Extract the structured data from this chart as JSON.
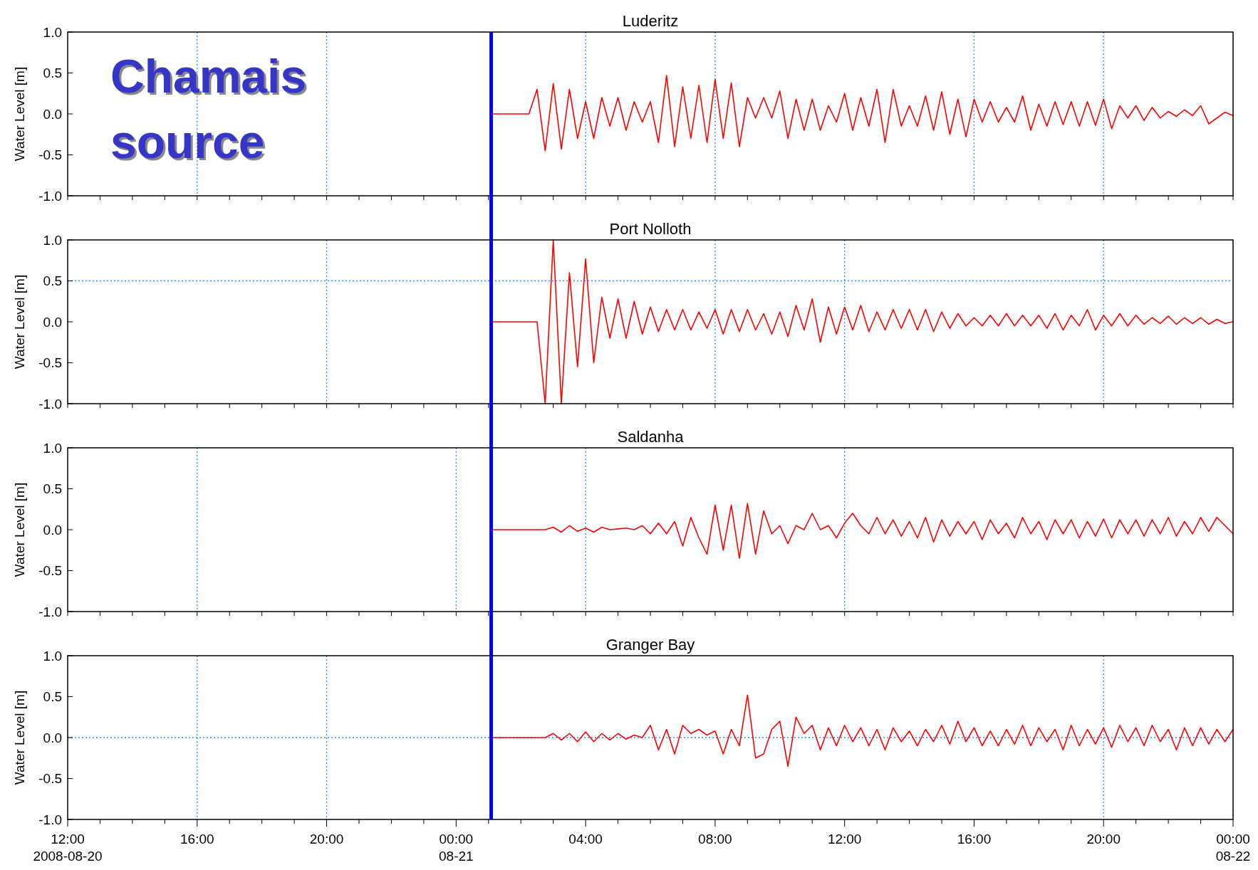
{
  "chart_data": [
    {
      "type": "line",
      "title": "Luderitz",
      "ylabel": "Water Level [m]",
      "xlim": [
        "2008-08-20T12:00",
        "2008-08-22T00:00"
      ],
      "ylim": [
        -1,
        1
      ],
      "yticks": [
        {
          "value": -1,
          "label": "-1.0"
        },
        {
          "value": -0.5,
          "label": "-0.5"
        },
        {
          "value": 0,
          "label": "0.0"
        },
        {
          "value": 0.5,
          "label": "0.5"
        },
        {
          "value": 1,
          "label": "1.0"
        }
      ],
      "xticks": [
        {
          "value": "2008-08-20T12:00",
          "label": null
        },
        {
          "value": "2008-08-20T13:00",
          "label": null
        },
        {
          "value": "2008-08-20T14:00",
          "label": null
        },
        {
          "value": "2008-08-20T15:00",
          "label": null
        },
        {
          "value": "2008-08-20T16:00",
          "label": null
        },
        {
          "value": "2008-08-20T17:00",
          "label": null
        },
        {
          "value": "2008-08-20T18:00",
          "label": null
        },
        {
          "value": "2008-08-20T19:00",
          "label": null
        },
        {
          "value": "2008-08-20T20:00",
          "label": null
        },
        {
          "value": "2008-08-20T21:00",
          "label": null
        },
        {
          "value": "2008-08-20T22:00",
          "label": null
        },
        {
          "value": "2008-08-20T23:00",
          "label": null
        },
        {
          "value": "2008-08-21T00:00",
          "label": null
        },
        {
          "value": "2008-08-21T01:00",
          "label": null
        },
        {
          "value": "2008-08-21T02:00",
          "label": null
        },
        {
          "value": "2008-08-21T03:00",
          "label": null
        },
        {
          "value": "2008-08-21T04:00",
          "label": null
        },
        {
          "value": "2008-08-21T05:00",
          "label": null
        },
        {
          "value": "2008-08-21T06:00",
          "label": null
        },
        {
          "value": "2008-08-21T07:00",
          "label": null
        },
        {
          "value": "2008-08-21T08:00",
          "label": null
        },
        {
          "value": "2008-08-21T09:00",
          "label": null
        },
        {
          "value": "2008-08-21T10:00",
          "label": null
        },
        {
          "value": "2008-08-21T11:00",
          "label": null
        },
        {
          "value": "2008-08-21T12:00",
          "label": null
        },
        {
          "value": "2008-08-21T13:00",
          "label": null
        },
        {
          "value": "2008-08-21T14:00",
          "label": null
        },
        {
          "value": "2008-08-21T15:00",
          "label": null
        },
        {
          "value": "2008-08-21T16:00",
          "label": null
        },
        {
          "value": "2008-08-21T17:00",
          "label": null
        },
        {
          "value": "2008-08-21T18:00",
          "label": null
        },
        {
          "value": "2008-08-21T19:00",
          "label": null
        },
        {
          "value": "2008-08-21T20:00",
          "label": null
        },
        {
          "value": "2008-08-21T21:00",
          "label": null
        },
        {
          "value": "2008-08-21T22:00",
          "label": null
        },
        {
          "value": "2008-08-21T23:00",
          "label": null
        },
        {
          "value": "2008-08-22T00:00",
          "label": null
        }
      ],
      "tick_labels": "y",
      "annotations": [
        "Chamais source"
      ],
      "ref_lines": [
        {
          "axis": "x",
          "value": "2008-08-21T01:05",
          "color": "#0000ff",
          "line_style": "solid"
        },
        {
          "axis": "x",
          "value": "2008-08-20T16:00",
          "color": "#1e90ff",
          "line_style": "dotted"
        },
        {
          "axis": "x",
          "value": "2008-08-20T20:00",
          "color": "#1e90ff",
          "line_style": "dotted"
        },
        {
          "axis": "x",
          "value": "2008-08-21T04:00",
          "color": "#1e90ff",
          "line_style": "dotted"
        },
        {
          "axis": "x",
          "value": "2008-08-21T08:00",
          "color": "#1e90ff",
          "line_style": "dotted"
        },
        {
          "axis": "x",
          "value": "2008-08-21T16:00",
          "color": "#1e90ff",
          "line_style": "dotted"
        },
        {
          "axis": "x",
          "value": "2008-08-21T20:00",
          "color": "#1e90ff",
          "line_style": "dotted"
        }
      ],
      "x": [
        "2008-08-21T01:05",
        "2008-08-21T02:15",
        "2008-08-21T02:30",
        "2008-08-21T02:45",
        "2008-08-21T03:00",
        "2008-08-21T03:15",
        "2008-08-21T03:30",
        "2008-08-21T03:45",
        "2008-08-21T04:00",
        "2008-08-21T04:15",
        "2008-08-21T04:30",
        "2008-08-21T04:45",
        "2008-08-21T05:00",
        "2008-08-21T05:15",
        "2008-08-21T05:30",
        "2008-08-21T05:45",
        "2008-08-21T06:00",
        "2008-08-21T06:15",
        "2008-08-21T06:30",
        "2008-08-21T06:45",
        "2008-08-21T07:00",
        "2008-08-21T07:15",
        "2008-08-21T07:30",
        "2008-08-21T07:45",
        "2008-08-21T08:00",
        "2008-08-21T08:15",
        "2008-08-21T08:30",
        "2008-08-21T08:45",
        "2008-08-21T09:00",
        "2008-08-21T09:15",
        "2008-08-21T09:30",
        "2008-08-21T09:45",
        "2008-08-21T10:00",
        "2008-08-21T10:15",
        "2008-08-21T10:30",
        "2008-08-21T10:45",
        "2008-08-21T11:00",
        "2008-08-21T11:15",
        "2008-08-21T11:30",
        "2008-08-21T11:45",
        "2008-08-21T12:00",
        "2008-08-21T12:15",
        "2008-08-21T12:30",
        "2008-08-21T12:45",
        "2008-08-21T13:00",
        "2008-08-21T13:15",
        "2008-08-21T13:30",
        "2008-08-21T13:45",
        "2008-08-21T14:00",
        "2008-08-21T14:15",
        "2008-08-21T14:30",
        "2008-08-21T14:45",
        "2008-08-21T15:00",
        "2008-08-21T15:15",
        "2008-08-21T15:30",
        "2008-08-21T15:45",
        "2008-08-21T16:00",
        "2008-08-21T16:15",
        "2008-08-21T16:30",
        "2008-08-21T16:45",
        "2008-08-21T17:00",
        "2008-08-21T17:15",
        "2008-08-21T17:30",
        "2008-08-21T17:45",
        "2008-08-21T18:00",
        "2008-08-21T18:15",
        "2008-08-21T18:30",
        "2008-08-21T18:45",
        "2008-08-21T19:00",
        "2008-08-21T19:15",
        "2008-08-21T19:30",
        "2008-08-21T19:45",
        "2008-08-21T20:00",
        "2008-08-21T20:15",
        "2008-08-21T20:30",
        "2008-08-21T20:45",
        "2008-08-21T21:00",
        "2008-08-21T21:15",
        "2008-08-21T21:30",
        "2008-08-21T21:45",
        "2008-08-21T22:00",
        "2008-08-21T22:15",
        "2008-08-21T22:30",
        "2008-08-21T22:45",
        "2008-08-21T23:00",
        "2008-08-21T23:15",
        "2008-08-21T23:30",
        "2008-08-21T23:45",
        "2008-08-22T00:00"
      ],
      "series": [
        {
          "color": "#ff0000",
          "values": [
            0,
            0,
            0.3,
            -0.45,
            0.37,
            -0.43,
            0.3,
            -0.3,
            0.15,
            -0.3,
            0.2,
            -0.15,
            0.2,
            -0.2,
            0.15,
            -0.1,
            0.15,
            -0.35,
            0.47,
            -0.4,
            0.33,
            -0.3,
            0.35,
            -0.35,
            0.42,
            -0.3,
            0.38,
            -0.4,
            0.2,
            -0.05,
            0.2,
            -0.05,
            0.28,
            -0.3,
            0.18,
            -0.2,
            0.18,
            -0.2,
            0.1,
            -0.1,
            0.25,
            -0.2,
            0.2,
            -0.15,
            0.3,
            -0.35,
            0.3,
            -0.15,
            0.1,
            -0.15,
            0.22,
            -0.2,
            0.27,
            -0.25,
            0.18,
            -0.28,
            0.18,
            -0.1,
            0.15,
            -0.1,
            0.08,
            -0.1,
            0.22,
            -0.2,
            0.12,
            -0.15,
            0.15,
            -0.13,
            0.15,
            -0.15,
            0.15,
            -0.14,
            0.18,
            -0.18,
            0.1,
            -0.05,
            0.1,
            -0.08,
            0.08,
            -0.05,
            0.03,
            -0.03,
            0.05,
            -0.02,
            0.1,
            -0.12,
            -0.05,
            0.02,
            -0.02
          ]
        }
      ]
    },
    {
      "type": "line",
      "title": "Port Nolloth",
      "ylabel": "Water Level [m]",
      "xlim": [
        "2008-08-20T12:00",
        "2008-08-22T00:00"
      ],
      "ylim": [
        -1,
        1
      ],
      "yticks": [
        {
          "value": -1,
          "label": "-1.0"
        },
        {
          "value": -0.5,
          "label": "-0.5"
        },
        {
          "value": 0,
          "label": "0.0"
        },
        {
          "value": 0.5,
          "label": "0.5"
        },
        {
          "value": 1,
          "label": "1.0"
        }
      ],
      "xticks": [
        {
          "value": "2008-08-20T12:00",
          "label": null
        },
        {
          "value": "2008-08-20T13:00",
          "label": null
        },
        {
          "value": "2008-08-20T14:00",
          "label": null
        },
        {
          "value": "2008-08-20T15:00",
          "label": null
        },
        {
          "value": "2008-08-20T16:00",
          "label": null
        },
        {
          "value": "2008-08-20T17:00",
          "label": null
        },
        {
          "value": "2008-08-20T18:00",
          "label": null
        },
        {
          "value": "2008-08-20T19:00",
          "label": null
        },
        {
          "value": "2008-08-20T20:00",
          "label": null
        },
        {
          "value": "2008-08-20T21:00",
          "label": null
        },
        {
          "value": "2008-08-20T22:00",
          "label": null
        },
        {
          "value": "2008-08-20T23:00",
          "label": null
        },
        {
          "value": "2008-08-21T00:00",
          "label": null
        },
        {
          "value": "2008-08-21T01:00",
          "label": null
        },
        {
          "value": "2008-08-21T02:00",
          "label": null
        },
        {
          "value": "2008-08-21T03:00",
          "label": null
        },
        {
          "value": "2008-08-21T04:00",
          "label": null
        },
        {
          "value": "2008-08-21T05:00",
          "label": null
        },
        {
          "value": "2008-08-21T06:00",
          "label": null
        },
        {
          "value": "2008-08-21T07:00",
          "label": null
        },
        {
          "value": "2008-08-21T08:00",
          "label": null
        },
        {
          "value": "2008-08-21T09:00",
          "label": null
        },
        {
          "value": "2008-08-21T10:00",
          "label": null
        },
        {
          "value": "2008-08-21T11:00",
          "label": null
        },
        {
          "value": "2008-08-21T12:00",
          "label": null
        },
        {
          "value": "2008-08-21T13:00",
          "label": null
        },
        {
          "value": "2008-08-21T14:00",
          "label": null
        },
        {
          "value": "2008-08-21T15:00",
          "label": null
        },
        {
          "value": "2008-08-21T16:00",
          "label": null
        },
        {
          "value": "2008-08-21T17:00",
          "label": null
        },
        {
          "value": "2008-08-21T18:00",
          "label": null
        },
        {
          "value": "2008-08-21T19:00",
          "label": null
        },
        {
          "value": "2008-08-21T20:00",
          "label": null
        },
        {
          "value": "2008-08-21T21:00",
          "label": null
        },
        {
          "value": "2008-08-21T22:00",
          "label": null
        },
        {
          "value": "2008-08-21T23:00",
          "label": null
        },
        {
          "value": "2008-08-22T00:00",
          "label": null
        }
      ],
      "tick_labels": "y",
      "ref_lines": [
        {
          "axis": "x",
          "value": "2008-08-21T01:05",
          "color": "#0000ff",
          "line_style": "solid"
        },
        {
          "axis": "x",
          "value": "2008-08-20T20:00",
          "color": "#1e90ff",
          "line_style": "dotted"
        },
        {
          "axis": "x",
          "value": "2008-08-21T08:00",
          "color": "#1e90ff",
          "line_style": "dotted"
        },
        {
          "axis": "x",
          "value": "2008-08-21T12:00",
          "color": "#1e90ff",
          "line_style": "dotted"
        },
        {
          "axis": "x",
          "value": "2008-08-21T20:00",
          "color": "#1e90ff",
          "line_style": "dotted"
        },
        {
          "axis": "y",
          "value": 0.5,
          "color": "#1e90ff",
          "line_style": "dotted"
        }
      ],
      "x": [
        "2008-08-21T01:05",
        "2008-08-21T02:15",
        "2008-08-21T02:30",
        "2008-08-21T02:45",
        "2008-08-21T03:00",
        "2008-08-21T03:15",
        "2008-08-21T03:30",
        "2008-08-21T03:45",
        "2008-08-21T04:00",
        "2008-08-21T04:15",
        "2008-08-21T04:30",
        "2008-08-21T04:45",
        "2008-08-21T05:00",
        "2008-08-21T05:15",
        "2008-08-21T05:30",
        "2008-08-21T05:45",
        "2008-08-21T06:00",
        "2008-08-21T06:15",
        "2008-08-21T06:30",
        "2008-08-21T06:45",
        "2008-08-21T07:00",
        "2008-08-21T07:15",
        "2008-08-21T07:30",
        "2008-08-21T07:45",
        "2008-08-21T08:00",
        "2008-08-21T08:15",
        "2008-08-21T08:30",
        "2008-08-21T08:45",
        "2008-08-21T09:00",
        "2008-08-21T09:15",
        "2008-08-21T09:30",
        "2008-08-21T09:45",
        "2008-08-21T10:00",
        "2008-08-21T10:15",
        "2008-08-21T10:30",
        "2008-08-21T10:45",
        "2008-08-21T11:00",
        "2008-08-21T11:15",
        "2008-08-21T11:30",
        "2008-08-21T11:45",
        "2008-08-21T12:00",
        "2008-08-21T12:15",
        "2008-08-21T12:30",
        "2008-08-21T12:45",
        "2008-08-21T13:00",
        "2008-08-21T13:15",
        "2008-08-21T13:30",
        "2008-08-21T13:45",
        "2008-08-21T14:00",
        "2008-08-21T14:15",
        "2008-08-21T14:30",
        "2008-08-21T14:45",
        "2008-08-21T15:00",
        "2008-08-21T15:15",
        "2008-08-21T15:30",
        "2008-08-21T15:45",
        "2008-08-21T16:00",
        "2008-08-21T16:15",
        "2008-08-21T16:30",
        "2008-08-21T16:45",
        "2008-08-21T17:00",
        "2008-08-21T17:15",
        "2008-08-21T17:30",
        "2008-08-21T17:45",
        "2008-08-21T18:00",
        "2008-08-21T18:15",
        "2008-08-21T18:30",
        "2008-08-21T18:45",
        "2008-08-21T19:00",
        "2008-08-21T19:15",
        "2008-08-21T19:30",
        "2008-08-21T19:45",
        "2008-08-21T20:00",
        "2008-08-21T20:15",
        "2008-08-21T20:30",
        "2008-08-21T20:45",
        "2008-08-21T21:00",
        "2008-08-21T21:15",
        "2008-08-21T21:30",
        "2008-08-21T21:45",
        "2008-08-21T22:00",
        "2008-08-21T22:15",
        "2008-08-21T22:30",
        "2008-08-21T22:45",
        "2008-08-21T23:00",
        "2008-08-21T23:15",
        "2008-08-21T23:30",
        "2008-08-21T23:45",
        "2008-08-22T00:00"
      ],
      "series": [
        {
          "color": "#ff0000",
          "values": [
            0,
            0,
            0,
            -1,
            1,
            -1,
            0.6,
            -0.55,
            0.77,
            -0.5,
            0.3,
            -0.2,
            0.28,
            -0.2,
            0.25,
            -0.15,
            0.18,
            -0.12,
            0.15,
            -0.1,
            0.15,
            -0.1,
            0.12,
            -0.08,
            0.15,
            -0.15,
            0.15,
            -0.12,
            0.15,
            -0.1,
            0.1,
            -0.15,
            0.12,
            -0.18,
            0.2,
            -0.1,
            0.28,
            -0.25,
            0.18,
            -0.15,
            0.18,
            -0.1,
            0.2,
            -0.12,
            0.12,
            -0.1,
            0.15,
            -0.08,
            0.15,
            -0.1,
            0.15,
            -0.12,
            0.12,
            -0.08,
            0.1,
            -0.05,
            0.05,
            -0.05,
            0.08,
            -0.05,
            0.1,
            -0.05,
            0.08,
            -0.05,
            0.08,
            -0.08,
            0.1,
            -0.1,
            0.08,
            -0.05,
            0.15,
            -0.1,
            0.08,
            -0.05,
            0.1,
            -0.05,
            0.08,
            -0.03,
            0.05,
            -0.02,
            0.07,
            -0.03,
            0.05,
            -0.02,
            0.05,
            -0.03,
            0.03,
            -0.02,
            0
          ]
        }
      ]
    },
    {
      "type": "line",
      "title": "Saldanha",
      "ylabel": "Water Level [m]",
      "xlim": [
        "2008-08-20T12:00",
        "2008-08-22T00:00"
      ],
      "ylim": [
        -1,
        1
      ],
      "yticks": [
        {
          "value": -1,
          "label": "-1.0"
        },
        {
          "value": -0.5,
          "label": "-0.5"
        },
        {
          "value": 0,
          "label": "0.0"
        },
        {
          "value": 0.5,
          "label": "0.5"
        },
        {
          "value": 1,
          "label": "1.0"
        }
      ],
      "xticks": [
        {
          "value": "2008-08-20T12:00",
          "label": null
        },
        {
          "value": "2008-08-20T13:00",
          "label": null
        },
        {
          "value": "2008-08-20T14:00",
          "label": null
        },
        {
          "value": "2008-08-20T15:00",
          "label": null
        },
        {
          "value": "2008-08-20T16:00",
          "label": null
        },
        {
          "value": "2008-08-20T17:00",
          "label": null
        },
        {
          "value": "2008-08-20T18:00",
          "label": null
        },
        {
          "value": "2008-08-20T19:00",
          "label": null
        },
        {
          "value": "2008-08-20T20:00",
          "label": null
        },
        {
          "value": "2008-08-20T21:00",
          "label": null
        },
        {
          "value": "2008-08-20T22:00",
          "label": null
        },
        {
          "value": "2008-08-20T23:00",
          "label": null
        },
        {
          "value": "2008-08-21T00:00",
          "label": null
        },
        {
          "value": "2008-08-21T01:00",
          "label": null
        },
        {
          "value": "2008-08-21T02:00",
          "label": null
        },
        {
          "value": "2008-08-21T03:00",
          "label": null
        },
        {
          "value": "2008-08-21T04:00",
          "label": null
        },
        {
          "value": "2008-08-21T05:00",
          "label": null
        },
        {
          "value": "2008-08-21T06:00",
          "label": null
        },
        {
          "value": "2008-08-21T07:00",
          "label": null
        },
        {
          "value": "2008-08-21T08:00",
          "label": null
        },
        {
          "value": "2008-08-21T09:00",
          "label": null
        },
        {
          "value": "2008-08-21T10:00",
          "label": null
        },
        {
          "value": "2008-08-21T11:00",
          "label": null
        },
        {
          "value": "2008-08-21T12:00",
          "label": null
        },
        {
          "value": "2008-08-21T13:00",
          "label": null
        },
        {
          "value": "2008-08-21T14:00",
          "label": null
        },
        {
          "value": "2008-08-21T15:00",
          "label": null
        },
        {
          "value": "2008-08-21T16:00",
          "label": null
        },
        {
          "value": "2008-08-21T17:00",
          "label": null
        },
        {
          "value": "2008-08-21T18:00",
          "label": null
        },
        {
          "value": "2008-08-21T19:00",
          "label": null
        },
        {
          "value": "2008-08-21T20:00",
          "label": null
        },
        {
          "value": "2008-08-21T21:00",
          "label": null
        },
        {
          "value": "2008-08-21T22:00",
          "label": null
        },
        {
          "value": "2008-08-21T23:00",
          "label": null
        },
        {
          "value": "2008-08-22T00:00",
          "label": null
        }
      ],
      "tick_labels": "y",
      "ref_lines": [
        {
          "axis": "x",
          "value": "2008-08-21T01:05",
          "color": "#0000ff",
          "line_style": "solid"
        },
        {
          "axis": "x",
          "value": "2008-08-20T16:00",
          "color": "#1e90ff",
          "line_style": "dotted"
        },
        {
          "axis": "x",
          "value": "2008-08-21T00:00",
          "color": "#1e90ff",
          "line_style": "dotted"
        },
        {
          "axis": "x",
          "value": "2008-08-21T04:00",
          "color": "#1e90ff",
          "line_style": "dotted"
        },
        {
          "axis": "x",
          "value": "2008-08-21T12:00",
          "color": "#1e90ff",
          "line_style": "dotted"
        }
      ],
      "x": [
        "2008-08-21T01:05",
        "2008-08-21T02:15",
        "2008-08-21T02:30",
        "2008-08-21T02:45",
        "2008-08-21T03:00",
        "2008-08-21T03:15",
        "2008-08-21T03:30",
        "2008-08-21T03:45",
        "2008-08-21T04:00",
        "2008-08-21T04:15",
        "2008-08-21T04:30",
        "2008-08-21T04:45",
        "2008-08-21T05:00",
        "2008-08-21T05:15",
        "2008-08-21T05:30",
        "2008-08-21T05:45",
        "2008-08-21T06:00",
        "2008-08-21T06:15",
        "2008-08-21T06:30",
        "2008-08-21T06:45",
        "2008-08-21T07:00",
        "2008-08-21T07:15",
        "2008-08-21T07:30",
        "2008-08-21T07:45",
        "2008-08-21T08:00",
        "2008-08-21T08:15",
        "2008-08-21T08:30",
        "2008-08-21T08:45",
        "2008-08-21T09:00",
        "2008-08-21T09:15",
        "2008-08-21T09:30",
        "2008-08-21T09:45",
        "2008-08-21T10:00",
        "2008-08-21T10:15",
        "2008-08-21T10:30",
        "2008-08-21T10:45",
        "2008-08-21T11:00",
        "2008-08-21T11:15",
        "2008-08-21T11:30",
        "2008-08-21T11:45",
        "2008-08-21T12:00",
        "2008-08-21T12:15",
        "2008-08-21T12:30",
        "2008-08-21T12:45",
        "2008-08-21T13:00",
        "2008-08-21T13:15",
        "2008-08-21T13:30",
        "2008-08-21T13:45",
        "2008-08-21T14:00",
        "2008-08-21T14:15",
        "2008-08-21T14:30",
        "2008-08-21T14:45",
        "2008-08-21T15:00",
        "2008-08-21T15:15",
        "2008-08-21T15:30",
        "2008-08-21T15:45",
        "2008-08-21T16:00",
        "2008-08-21T16:15",
        "2008-08-21T16:30",
        "2008-08-21T16:45",
        "2008-08-21T17:00",
        "2008-08-21T17:15",
        "2008-08-21T17:30",
        "2008-08-21T17:45",
        "2008-08-21T18:00",
        "2008-08-21T18:15",
        "2008-08-21T18:30",
        "2008-08-21T18:45",
        "2008-08-21T19:00",
        "2008-08-21T19:15",
        "2008-08-21T19:30",
        "2008-08-21T19:45",
        "2008-08-21T20:00",
        "2008-08-21T20:15",
        "2008-08-21T20:30",
        "2008-08-21T20:45",
        "2008-08-21T21:00",
        "2008-08-21T21:15",
        "2008-08-21T21:30",
        "2008-08-21T21:45",
        "2008-08-21T22:00",
        "2008-08-21T22:15",
        "2008-08-21T22:30",
        "2008-08-21T22:45",
        "2008-08-21T23:00",
        "2008-08-21T23:15",
        "2008-08-21T23:30",
        "2008-08-21T23:45",
        "2008-08-22T00:00"
      ],
      "series": [
        {
          "color": "#ff0000",
          "values": [
            0,
            0,
            0,
            0,
            0.03,
            -0.03,
            0.05,
            -0.02,
            0.02,
            -0.03,
            0.03,
            0,
            0.01,
            0.02,
            0,
            0.05,
            -0.05,
            0.08,
            -0.05,
            0.1,
            -0.2,
            0.15,
            -0.1,
            -0.3,
            0.3,
            -0.25,
            0.3,
            -0.35,
            0.32,
            -0.3,
            0.23,
            -0.05,
            0.05,
            -0.17,
            0.05,
            0,
            0.2,
            0,
            0.05,
            -0.1,
            0.08,
            0.2,
            0.05,
            -0.05,
            0.15,
            -0.05,
            0.12,
            -0.08,
            0.1,
            -0.1,
            0.15,
            -0.15,
            0.12,
            -0.08,
            0.1,
            -0.05,
            0.1,
            -0.12,
            0.12,
            -0.05,
            0.08,
            -0.1,
            0.15,
            -0.05,
            0.1,
            -0.12,
            0.12,
            -0.05,
            0.12,
            -0.1,
            0.1,
            -0.08,
            0.13,
            -0.1,
            0.12,
            -0.05,
            0.12,
            -0.08,
            0.12,
            -0.05,
            0.15,
            -0.08,
            0.1,
            -0.05,
            0.15,
            -0.02,
            0.15,
            0.05,
            -0.05
          ]
        }
      ]
    },
    {
      "type": "line",
      "title": "Granger Bay",
      "ylabel": "Water Level [m]",
      "xlim": [
        "2008-08-20T12:00",
        "2008-08-22T00:00"
      ],
      "ylim": [
        -1,
        1
      ],
      "yticks": [
        {
          "value": -1,
          "label": "-1.0"
        },
        {
          "value": -0.5,
          "label": "-0.5"
        },
        {
          "value": 0,
          "label": "0.0"
        },
        {
          "value": 0.5,
          "label": "0.5"
        },
        {
          "value": 1,
          "label": "1.0"
        }
      ],
      "xticks": [
        {
          "value": "2008-08-20T12:00",
          "label": "12:00\n2008-08-20"
        },
        {
          "value": "2008-08-20T13:00",
          "label": null
        },
        {
          "value": "2008-08-20T14:00",
          "label": null
        },
        {
          "value": "2008-08-20T15:00",
          "label": null
        },
        {
          "value": "2008-08-20T16:00",
          "label": "16:00"
        },
        {
          "value": "2008-08-20T17:00",
          "label": null
        },
        {
          "value": "2008-08-20T18:00",
          "label": null
        },
        {
          "value": "2008-08-20T19:00",
          "label": null
        },
        {
          "value": "2008-08-20T20:00",
          "label": "20:00"
        },
        {
          "value": "2008-08-20T21:00",
          "label": null
        },
        {
          "value": "2008-08-20T22:00",
          "label": null
        },
        {
          "value": "2008-08-20T23:00",
          "label": null
        },
        {
          "value": "2008-08-21T00:00",
          "label": "00:00\n08-21"
        },
        {
          "value": "2008-08-21T01:00",
          "label": null
        },
        {
          "value": "2008-08-21T02:00",
          "label": null
        },
        {
          "value": "2008-08-21T03:00",
          "label": null
        },
        {
          "value": "2008-08-21T04:00",
          "label": "04:00"
        },
        {
          "value": "2008-08-21T05:00",
          "label": null
        },
        {
          "value": "2008-08-21T06:00",
          "label": null
        },
        {
          "value": "2008-08-21T07:00",
          "label": null
        },
        {
          "value": "2008-08-21T08:00",
          "label": "08:00"
        },
        {
          "value": "2008-08-21T09:00",
          "label": null
        },
        {
          "value": "2008-08-21T10:00",
          "label": null
        },
        {
          "value": "2008-08-21T11:00",
          "label": null
        },
        {
          "value": "2008-08-21T12:00",
          "label": "12:00"
        },
        {
          "value": "2008-08-21T13:00",
          "label": null
        },
        {
          "value": "2008-08-21T14:00",
          "label": null
        },
        {
          "value": "2008-08-21T15:00",
          "label": null
        },
        {
          "value": "2008-08-21T16:00",
          "label": "16:00"
        },
        {
          "value": "2008-08-21T17:00",
          "label": null
        },
        {
          "value": "2008-08-21T18:00",
          "label": null
        },
        {
          "value": "2008-08-21T19:00",
          "label": null
        },
        {
          "value": "2008-08-21T20:00",
          "label": "20:00"
        },
        {
          "value": "2008-08-21T21:00",
          "label": null
        },
        {
          "value": "2008-08-21T22:00",
          "label": null
        },
        {
          "value": "2008-08-21T23:00",
          "label": null
        },
        {
          "value": "2008-08-22T00:00",
          "label": "00:00\n08-22"
        }
      ],
      "ref_lines": [
        {
          "axis": "x",
          "value": "2008-08-21T01:05",
          "color": "#0000ff",
          "line_style": "solid"
        },
        {
          "axis": "x",
          "value": "2008-08-20T16:00",
          "color": "#1e90ff",
          "line_style": "dotted"
        },
        {
          "axis": "x",
          "value": "2008-08-20T20:00",
          "color": "#1e90ff",
          "line_style": "dotted"
        },
        {
          "axis": "x",
          "value": "2008-08-21T20:00",
          "color": "#1e90ff",
          "line_style": "dotted"
        },
        {
          "axis": "y",
          "value": 0,
          "color": "#1e90ff",
          "line_style": "dotted"
        }
      ],
      "x": [
        "2008-08-21T01:05",
        "2008-08-21T02:15",
        "2008-08-21T02:30",
        "2008-08-21T02:45",
        "2008-08-21T03:00",
        "2008-08-21T03:15",
        "2008-08-21T03:30",
        "2008-08-21T03:45",
        "2008-08-21T04:00",
        "2008-08-21T04:15",
        "2008-08-21T04:30",
        "2008-08-21T04:45",
        "2008-08-21T05:00",
        "2008-08-21T05:15",
        "2008-08-21T05:30",
        "2008-08-21T05:45",
        "2008-08-21T06:00",
        "2008-08-21T06:15",
        "2008-08-21T06:30",
        "2008-08-21T06:45",
        "2008-08-21T07:00",
        "2008-08-21T07:15",
        "2008-08-21T07:30",
        "2008-08-21T07:45",
        "2008-08-21T08:00",
        "2008-08-21T08:15",
        "2008-08-21T08:30",
        "2008-08-21T08:45",
        "2008-08-21T09:00",
        "2008-08-21T09:15",
        "2008-08-21T09:30",
        "2008-08-21T09:45",
        "2008-08-21T10:00",
        "2008-08-21T10:15",
        "2008-08-21T10:30",
        "2008-08-21T10:45",
        "2008-08-21T11:00",
        "2008-08-21T11:15",
        "2008-08-21T11:30",
        "2008-08-21T11:45",
        "2008-08-21T12:00",
        "2008-08-21T12:15",
        "2008-08-21T12:30",
        "2008-08-21T12:45",
        "2008-08-21T13:00",
        "2008-08-21T13:15",
        "2008-08-21T13:30",
        "2008-08-21T13:45",
        "2008-08-21T14:00",
        "2008-08-21T14:15",
        "2008-08-21T14:30",
        "2008-08-21T14:45",
        "2008-08-21T15:00",
        "2008-08-21T15:15",
        "2008-08-21T15:30",
        "2008-08-21T15:45",
        "2008-08-21T16:00",
        "2008-08-21T16:15",
        "2008-08-21T16:30",
        "2008-08-21T16:45",
        "2008-08-21T17:00",
        "2008-08-21T17:15",
        "2008-08-21T17:30",
        "2008-08-21T17:45",
        "2008-08-21T18:00",
        "2008-08-21T18:15",
        "2008-08-21T18:30",
        "2008-08-21T18:45",
        "2008-08-21T19:00",
        "2008-08-21T19:15",
        "2008-08-21T19:30",
        "2008-08-21T19:45",
        "2008-08-21T20:00",
        "2008-08-21T20:15",
        "2008-08-21T20:30",
        "2008-08-21T20:45",
        "2008-08-21T21:00",
        "2008-08-21T21:15",
        "2008-08-21T21:30",
        "2008-08-21T21:45",
        "2008-08-21T22:00",
        "2008-08-21T22:15",
        "2008-08-21T22:30",
        "2008-08-21T22:45",
        "2008-08-21T23:00",
        "2008-08-21T23:15",
        "2008-08-21T23:30",
        "2008-08-21T23:45",
        "2008-08-22T00:00"
      ],
      "series": [
        {
          "color": "#ff0000",
          "values": [
            0,
            0,
            0,
            0,
            0.05,
            -0.03,
            0.05,
            -0.05,
            0.07,
            -0.05,
            0.05,
            -0.03,
            0.05,
            -0.02,
            0.03,
            0,
            0.15,
            -0.15,
            0.1,
            -0.2,
            0.15,
            0.05,
            0.1,
            0.03,
            0.08,
            -0.2,
            0.1,
            -0.1,
            0.52,
            -0.25,
            -0.2,
            0.1,
            0.2,
            -0.35,
            0.25,
            0.05,
            0.15,
            -0.15,
            0.12,
            -0.1,
            0.15,
            -0.05,
            0.12,
            -0.1,
            0.1,
            -0.15,
            0.12,
            -0.05,
            0.08,
            -0.1,
            0.1,
            -0.05,
            0.15,
            -0.08,
            0.2,
            -0.05,
            0.12,
            -0.1,
            0.08,
            -0.1,
            0.1,
            -0.08,
            0.15,
            -0.1,
            0.12,
            -0.05,
            0.1,
            -0.15,
            0.15,
            -0.1,
            0.1,
            -0.08,
            0.12,
            -0.12,
            0.15,
            -0.05,
            0.12,
            -0.1,
            0.15,
            -0.05,
            0.1,
            -0.15,
            0.12,
            -0.1,
            0.12,
            -0.08,
            0.1,
            -0.05,
            0.1
          ]
        }
      ]
    }
  ]
}
